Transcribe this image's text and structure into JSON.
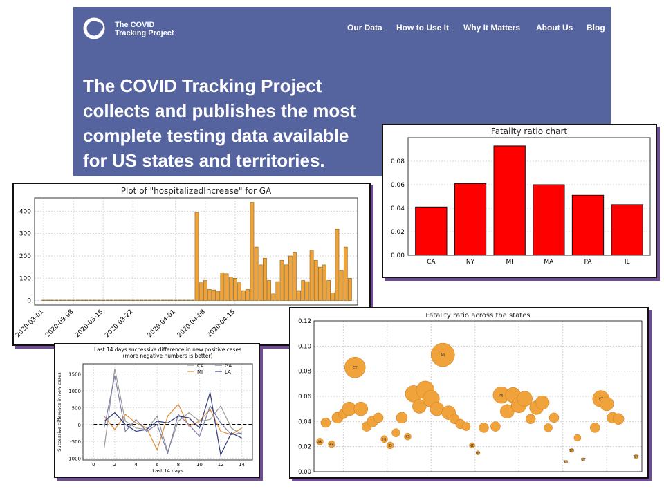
{
  "header": {
    "logo_line1": "The COVID",
    "logo_line2": "Tracking Project",
    "nav": [
      "Our Data",
      "How to Use It",
      "Why It Matters",
      "About Us",
      "Blog"
    ],
    "headline": [
      "The COVID Tracking Project",
      "collects and publishes the most",
      "complete testing data available",
      "for US states and territories."
    ],
    "colors": {
      "banner": "#55639f",
      "text": "#ffffff"
    }
  },
  "chart_data": [
    {
      "id": "hosp",
      "type": "bar",
      "title": "Plot of \"hospitalizedIncrease\" for GA",
      "color": "#f0a33a",
      "x_ticks": [
        "2020-03-01",
        "2020-03-08",
        "2020-03-15",
        "2020-03-22",
        "2020-04-01",
        "2020-04-08",
        "2020-04-15"
      ],
      "y_ticks": [
        0,
        100,
        200,
        300,
        400
      ],
      "ylim": [
        -20,
        460
      ],
      "values": [
        0,
        0,
        0,
        0,
        0,
        0,
        0,
        0,
        0,
        0,
        0,
        0,
        0,
        0,
        0,
        0,
        0,
        0,
        0,
        0,
        0,
        0,
        0,
        0,
        0,
        0,
        0,
        0,
        0,
        0,
        0,
        0,
        0,
        0,
        0,
        0,
        395,
        80,
        90,
        50,
        48,
        42,
        125,
        120,
        105,
        100,
        80,
        45,
        50,
        440,
        240,
        160,
        190,
        90,
        30,
        85,
        180,
        160,
        200,
        215,
        45,
        90,
        85,
        225,
        180,
        150,
        160,
        90,
        35,
        320,
        135,
        240,
        100
      ],
      "grid": true
    },
    {
      "id": "fatality_bar",
      "type": "bar",
      "title": "Fatality ratio chart",
      "color": "#ff0000",
      "categories": [
        "CA",
        "NY",
        "MI",
        "MA",
        "PA",
        "IL"
      ],
      "values": [
        0.041,
        0.061,
        0.093,
        0.06,
        0.051,
        0.043
      ],
      "y_ticks": [
        "0.00",
        "0.02",
        "0.04",
        "0.06",
        "0.08"
      ],
      "ylim": [
        0,
        0.1
      ],
      "grid": true
    },
    {
      "id": "diff",
      "type": "line",
      "title": "Last 14 days successive difference in new positive cases",
      "subtitle": "(more negative numbers is better)",
      "xlabel": "Last 14 days",
      "ylabel": "Successive difference in new cases",
      "x_ticks": [
        0,
        2,
        4,
        6,
        8,
        10,
        12,
        14
      ],
      "y_ticks": [
        -1000,
        -500,
        0,
        500,
        1000,
        1500
      ],
      "xlim": [
        -1,
        15
      ],
      "ylim": [
        -1050,
        1800
      ],
      "x": [
        1,
        2,
        3,
        4,
        5,
        6,
        7,
        8,
        9,
        10,
        11,
        12,
        13,
        14
      ],
      "legend": [
        "CA",
        "MI",
        "GA",
        "LA"
      ],
      "series": [
        {
          "name": "CA",
          "color": "#999999",
          "values": [
            -700,
            1650,
            100,
            -100,
            -150,
            250,
            -800,
            100,
            350,
            100,
            150,
            550,
            -100,
            -300
          ]
        },
        {
          "name": "MI",
          "color": "#e08a30",
          "values": [
            250,
            -150,
            300,
            50,
            -100,
            -750,
            250,
            600,
            -50,
            100,
            450,
            -200,
            -300,
            -100
          ]
        },
        {
          "name": "GA",
          "color": "#7b7ea8",
          "values": [
            -100,
            1450,
            -200,
            150,
            -200,
            0,
            -850,
            300,
            0,
            -350,
            550,
            50,
            -300,
            -250
          ]
        },
        {
          "name": "LA",
          "color": "#2f3a80",
          "values": [
            100,
            350,
            0,
            -200,
            -150,
            100,
            50,
            250,
            200,
            -100,
            950,
            -900,
            -250,
            -400
          ]
        }
      ],
      "baseline": 0
    },
    {
      "id": "scatter",
      "type": "scatter",
      "title": "Fatality ratio across the states",
      "color": "#f0a33a",
      "y_ticks": [
        "0.00",
        "0.02",
        "0.04",
        "0.06",
        "0.08",
        "0.10",
        "0.12"
      ],
      "ylim": [
        0,
        0.12
      ],
      "xlim": [
        0,
        56
      ],
      "grid": true,
      "points": [
        {
          "x": 1,
          "y": 0.024,
          "r": 5,
          "label": "AK"
        },
        {
          "x": 2,
          "y": 0.039,
          "r": 7
        },
        {
          "x": 3,
          "y": 0.022,
          "r": 5,
          "label": "AR"
        },
        {
          "x": 4,
          "y": 0.043,
          "r": 8
        },
        {
          "x": 5,
          "y": 0.046,
          "r": 7
        },
        {
          "x": 6,
          "y": 0.05,
          "r": 10
        },
        {
          "x": 7,
          "y": 0.083,
          "r": 15,
          "label": "CT"
        },
        {
          "x": 8,
          "y": 0.05,
          "r": 10
        },
        {
          "x": 9,
          "y": 0.036,
          "r": 7
        },
        {
          "x": 10,
          "y": 0.04,
          "r": 8
        },
        {
          "x": 11,
          "y": 0.043,
          "r": 7
        },
        {
          "x": 12,
          "y": 0.026,
          "r": 5,
          "label": "HI"
        },
        {
          "x": 13,
          "y": 0.021,
          "r": 5,
          "label": "ID"
        },
        {
          "x": 14,
          "y": 0.031,
          "r": 6
        },
        {
          "x": 15,
          "y": 0.043,
          "r": 8
        },
        {
          "x": 16,
          "y": 0.028,
          "r": 5,
          "label": "KS"
        },
        {
          "x": 17,
          "y": 0.062,
          "r": 12
        },
        {
          "x": 18,
          "y": 0.052,
          "r": 10
        },
        {
          "x": 19,
          "y": 0.065,
          "r": 13
        },
        {
          "x": 20,
          "y": 0.058,
          "r": 12
        },
        {
          "x": 21,
          "y": 0.05,
          "r": 10
        },
        {
          "x": 22,
          "y": 0.093,
          "r": 17,
          "label": "MI"
        },
        {
          "x": 23,
          "y": 0.047,
          "r": 10
        },
        {
          "x": 24,
          "y": 0.042,
          "r": 7
        },
        {
          "x": 25,
          "y": 0.038,
          "r": 7
        },
        {
          "x": 26,
          "y": 0.036,
          "r": 6
        },
        {
          "x": 27,
          "y": 0.021,
          "r": 4,
          "label": "ND"
        },
        {
          "x": 28,
          "y": 0.015,
          "r": 3,
          "label": "NE"
        },
        {
          "x": 29,
          "y": 0.035,
          "r": 7
        },
        {
          "x": 31,
          "y": 0.036,
          "r": 7
        },
        {
          "x": 32,
          "y": 0.061,
          "r": 12,
          "label": "NJ"
        },
        {
          "x": 33,
          "y": 0.048,
          "r": 10
        },
        {
          "x": 34,
          "y": 0.061,
          "r": 11
        },
        {
          "x": 35,
          "y": 0.053,
          "r": 11
        },
        {
          "x": 36,
          "y": 0.058,
          "r": 11
        },
        {
          "x": 37,
          "y": 0.042,
          "r": 7
        },
        {
          "x": 38,
          "y": 0.051,
          "r": 10
        },
        {
          "x": 39,
          "y": 0.055,
          "r": 10
        },
        {
          "x": 40,
          "y": 0.035,
          "r": 6
        },
        {
          "x": 41,
          "y": 0.043,
          "r": 7
        },
        {
          "x": 43,
          "y": 0.008,
          "r": 2,
          "label": "SD"
        },
        {
          "x": 44,
          "y": 0.017,
          "r": 3,
          "label": "TN"
        },
        {
          "x": 45,
          "y": 0.027,
          "r": 5
        },
        {
          "x": 46,
          "y": 0.01,
          "r": 2,
          "label": "UT"
        },
        {
          "x": 48,
          "y": 0.035,
          "r": 7
        },
        {
          "x": 49,
          "y": 0.058,
          "r": 12,
          "label": "VT"
        },
        {
          "x": 50,
          "y": 0.054,
          "r": 10
        },
        {
          "x": 51,
          "y": 0.043,
          "r": 8
        },
        {
          "x": 52,
          "y": 0.042,
          "r": 8
        },
        {
          "x": 55,
          "y": 0.012,
          "r": 3,
          "label": "WY"
        }
      ]
    }
  ]
}
